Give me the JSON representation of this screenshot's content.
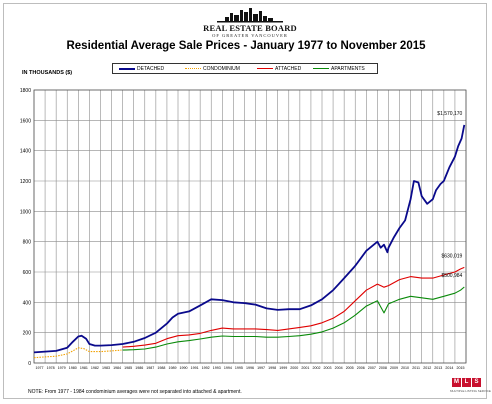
{
  "header": {
    "logo_name": "REAL ESTATE BOARD",
    "logo_subtitle": "OF GREATER VANCOUVER",
    "title": "Residential Average Sale Prices  -  January 1977 to November 2015"
  },
  "footer": {
    "note": "NOTE: From 1977 - 1984 condominium averages were not separated into attached & apartment.",
    "logo_letters": [
      "M",
      "L",
      "S"
    ],
    "logo_caption": "MULTIPLE LISTING SERVICE"
  },
  "colors": {
    "detached": "#0a0a8c",
    "condominium": "#f2a100",
    "attached": "#e00000",
    "apartments": "#0a8a0a",
    "grid": "#8c8c8c",
    "frame": "#bdbdbd"
  },
  "chart_data": {
    "type": "line",
    "ylabel": "IN THOUSANDS ($)",
    "ylim": [
      0,
      1800
    ],
    "yticks": [
      "0",
      "200",
      "400",
      "600",
      "800",
      "1000",
      "1200",
      "1400",
      "1600",
      "1800"
    ],
    "xlim": [
      1977,
      2016
    ],
    "x_tick_labels": [
      "1977",
      "1978",
      "1979",
      "1980",
      "1981",
      "1982",
      "1983",
      "1984",
      "1985",
      "1986",
      "1987",
      "1988",
      "1989",
      "1990",
      "1991",
      "1992",
      "1993",
      "1994",
      "1995",
      "1996",
      "1997",
      "1998",
      "1999",
      "2000",
      "2001",
      "2002",
      "2003",
      "2004",
      "2005",
      "2006",
      "2007",
      "2008",
      "2009",
      "2010",
      "2011",
      "2012",
      "2013",
      "2014",
      "2015"
    ],
    "grid": true,
    "legend_position": "top-center",
    "annotations": [
      {
        "text": "$1,570,170",
        "series": "DETACHED",
        "x": 2015.85,
        "y": 1570
      },
      {
        "text": "$630,019",
        "series": "ATTACHED",
        "x": 2015.85,
        "y": 630
      },
      {
        "text": "$500,984",
        "series": "APARTMENTS",
        "x": 2015.85,
        "y": 501
      }
    ],
    "series": [
      {
        "name": "DETACHED",
        "style": "solid",
        "x": [
          1977,
          1978,
          1979,
          1980,
          1980.5,
          1981,
          1981.3,
          1981.7,
          1982,
          1982.5,
          1983,
          1984,
          1985,
          1986,
          1987,
          1988,
          1989,
          1989.5,
          1990,
          1991,
          1992,
          1993,
          1994,
          1995,
          1996,
          1997,
          1998,
          1999,
          2000,
          2001,
          2002,
          2003,
          2004,
          2005,
          2006,
          2007,
          2008,
          2008.3,
          2008.6,
          2008.9,
          2009,
          2009.5,
          2010,
          2010.5,
          2011,
          2011.3,
          2011.7,
          2012,
          2012.5,
          2013,
          2013.3,
          2013.7,
          2014,
          2014.5,
          2015,
          2015.3,
          2015.6,
          2015.85
        ],
        "values": [
          70,
          75,
          80,
          100,
          140,
          175,
          180,
          160,
          125,
          115,
          115,
          118,
          125,
          140,
          165,
          200,
          260,
          300,
          325,
          340,
          380,
          420,
          415,
          400,
          395,
          385,
          360,
          350,
          355,
          355,
          380,
          420,
          480,
          560,
          640,
          740,
          800,
          760,
          780,
          730,
          760,
          830,
          890,
          940,
          1080,
          1200,
          1190,
          1100,
          1050,
          1080,
          1140,
          1180,
          1200,
          1290,
          1360,
          1430,
          1480,
          1570
        ]
      },
      {
        "name": "CONDOMINIUM",
        "style": "dotted",
        "x": [
          1977,
          1978,
          1979,
          1980,
          1980.5,
          1981,
          1981.5,
          1982,
          1983,
          1984,
          1984.9
        ],
        "values": [
          35,
          40,
          45,
          60,
          80,
          100,
          95,
          75,
          75,
          80,
          85
        ]
      },
      {
        "name": "ATTACHED",
        "style": "solid",
        "x": [
          1985,
          1986,
          1987,
          1988,
          1989,
          1990,
          1991,
          1992,
          1993,
          1994,
          1995,
          1996,
          1997,
          1998,
          1999,
          2000,
          2001,
          2002,
          2003,
          2004,
          2005,
          2006,
          2007,
          2008,
          2008.6,
          2009,
          2010,
          2011,
          2012,
          2013,
          2014,
          2015,
          2015.5,
          2015.85
        ],
        "values": [
          105,
          110,
          118,
          130,
          160,
          180,
          185,
          195,
          215,
          230,
          225,
          225,
          225,
          220,
          215,
          225,
          235,
          245,
          265,
          295,
          340,
          410,
          480,
          520,
          500,
          510,
          550,
          570,
          560,
          560,
          580,
          600,
          620,
          630
        ]
      },
      {
        "name": "APARTMENTS",
        "style": "solid",
        "x": [
          1985,
          1986,
          1987,
          1988,
          1989,
          1990,
          1991,
          1992,
          1993,
          1994,
          1995,
          1996,
          1997,
          1998,
          1999,
          2000,
          2001,
          2002,
          2003,
          2004,
          2005,
          2006,
          2007,
          2008,
          2008.6,
          2009,
          2010,
          2011,
          2012,
          2013,
          2014,
          2015,
          2015.5,
          2015.85
        ],
        "values": [
          85,
          88,
          92,
          105,
          125,
          140,
          148,
          158,
          170,
          178,
          175,
          175,
          175,
          170,
          170,
          175,
          180,
          190,
          205,
          230,
          265,
          315,
          375,
          410,
          330,
          390,
          420,
          440,
          430,
          420,
          440,
          460,
          480,
          501
        ]
      }
    ]
  }
}
